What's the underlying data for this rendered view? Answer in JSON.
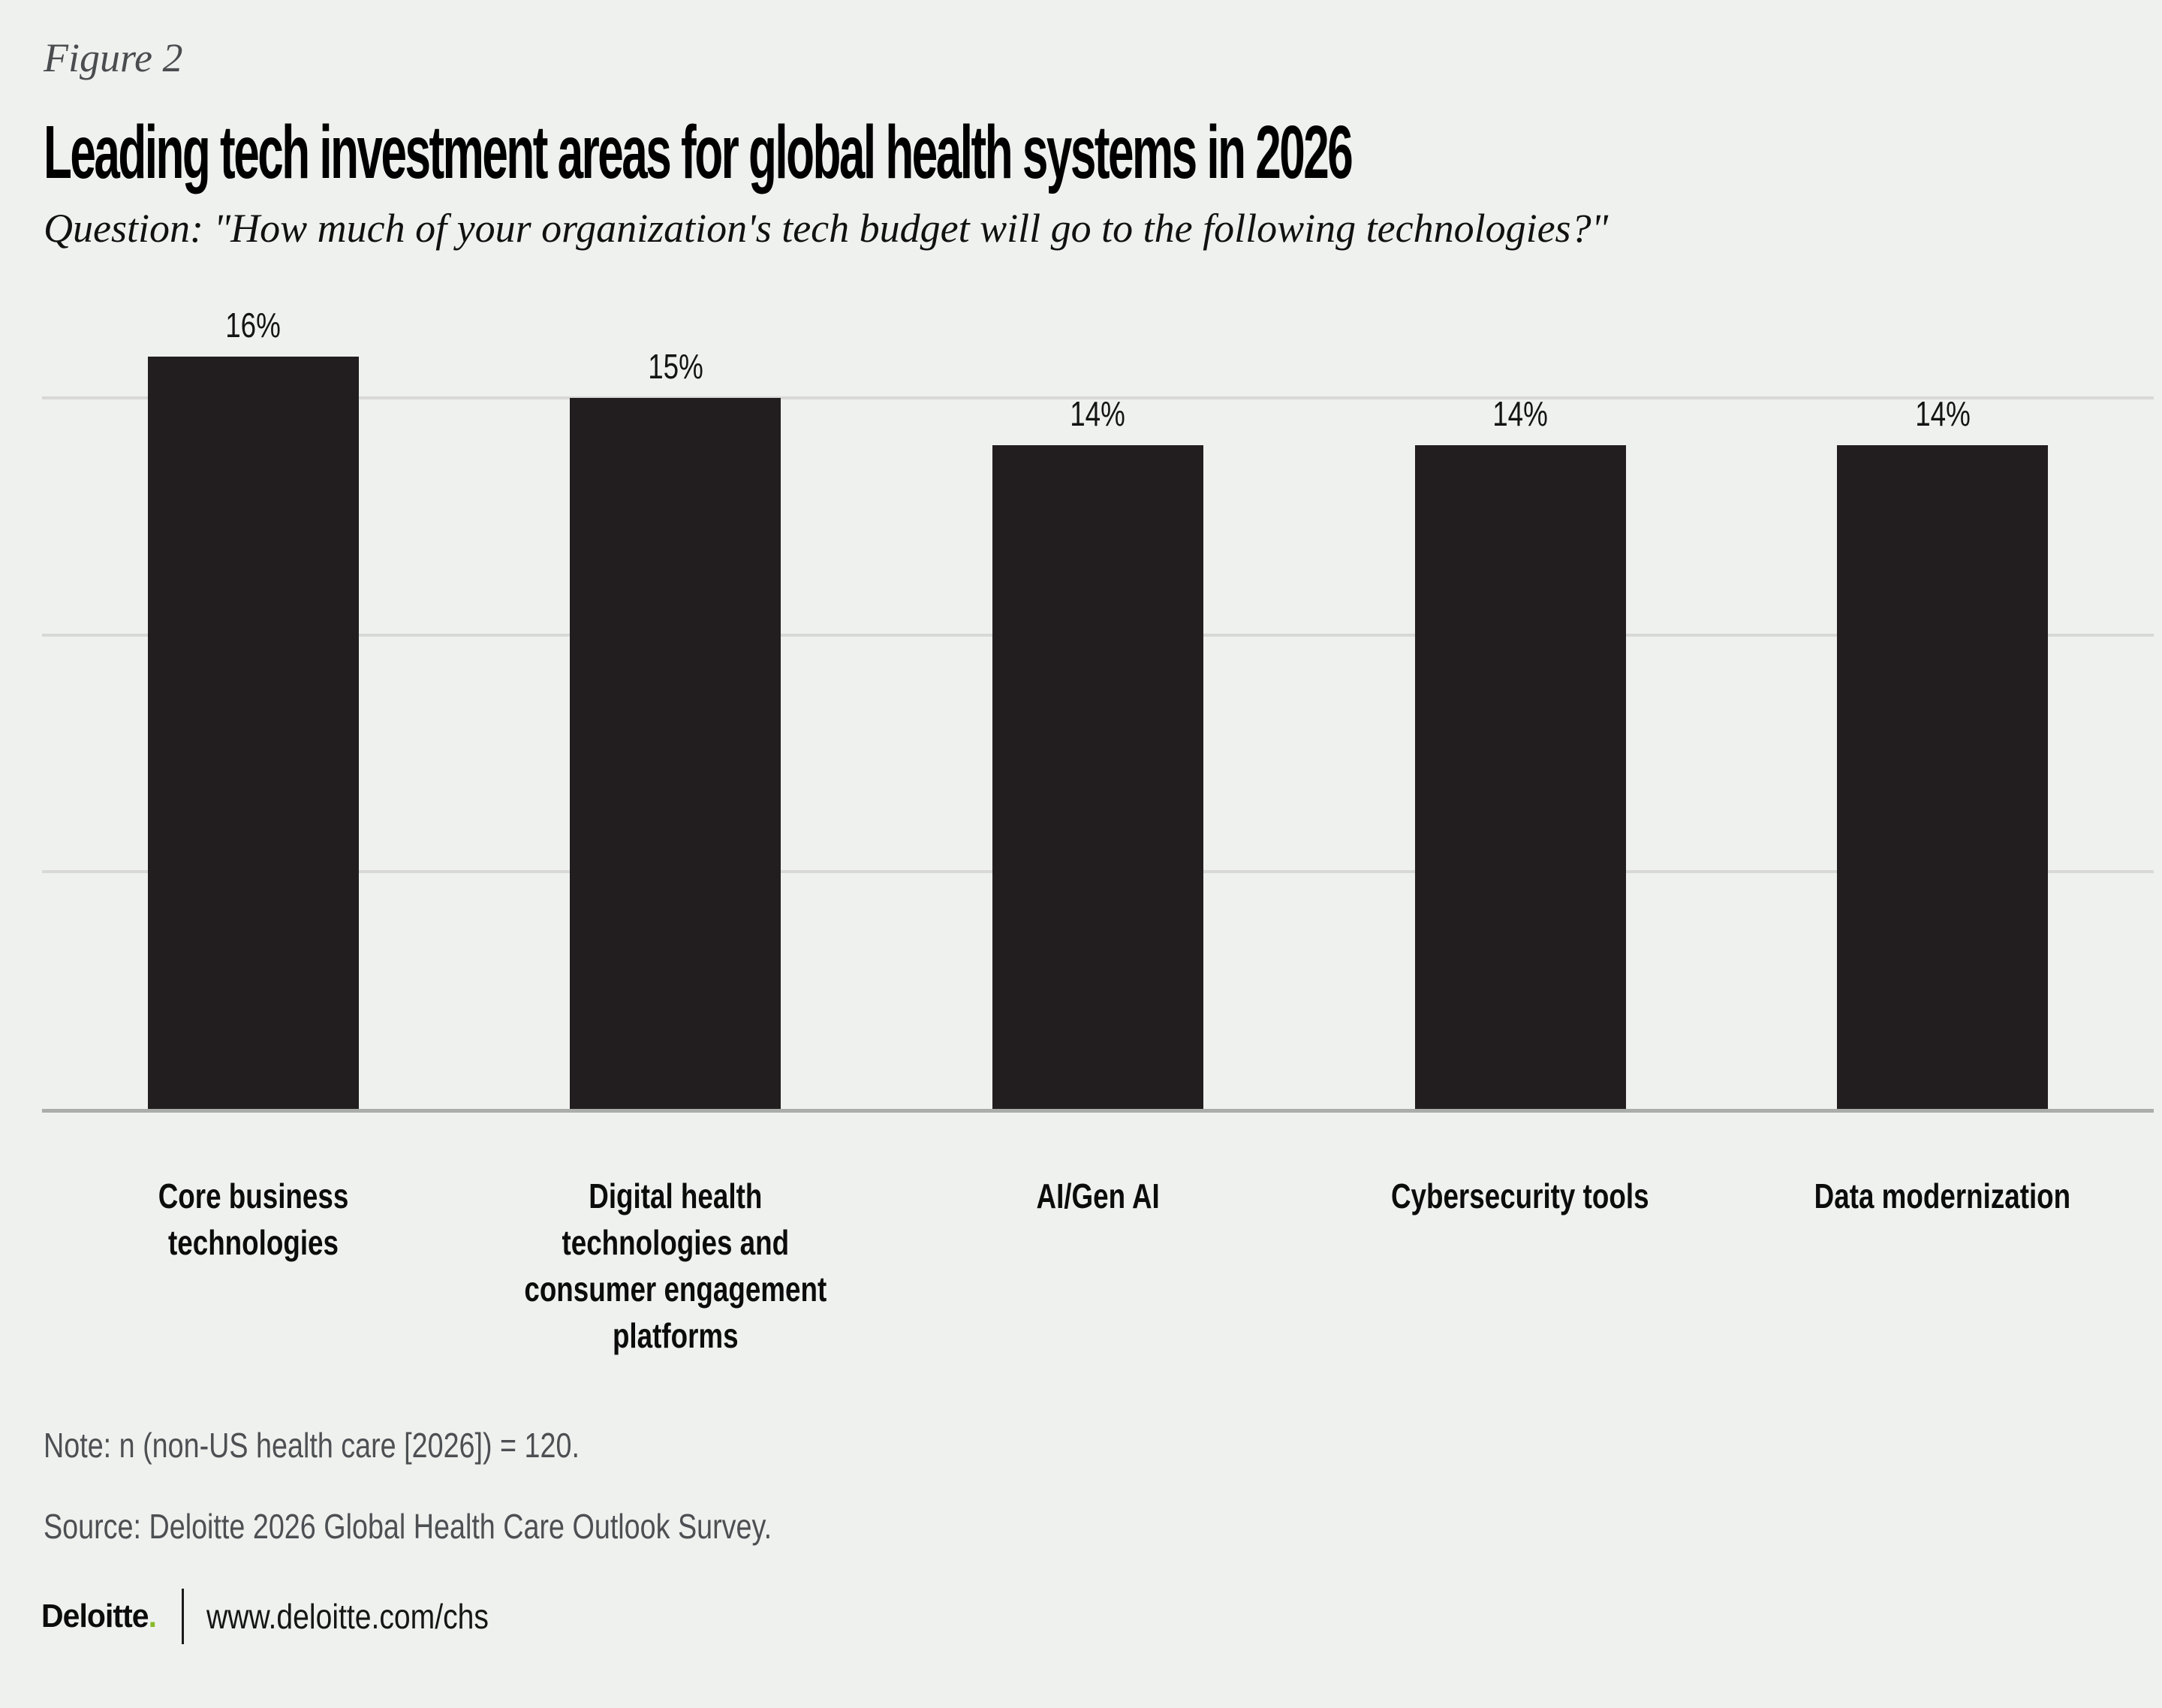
{
  "figure_label": "Figure 2",
  "title": "Leading tech investment areas for global health systems in 2026",
  "question": "Question: \"How much of your organization's tech budget will go to the following technologies?\"",
  "chart_data": {
    "type": "bar",
    "title": "Leading tech investment areas for global health systems in 2026",
    "categories": [
      "Core business technologies",
      "Digital health technologies and consumer engagement platforms",
      "AI/Gen AI",
      "Cybersecurity tools",
      "Data modernization"
    ],
    "category_lines": [
      [
        "Core business",
        "technologies"
      ],
      [
        "Digital health",
        "technologies and",
        "consumer engagement",
        "platforms"
      ],
      [
        "AI/Gen AI"
      ],
      [
        "Cybersecurity tools"
      ],
      [
        "Data modernization"
      ]
    ],
    "values": [
      16,
      15,
      14,
      14,
      14
    ],
    "value_labels": [
      "16%",
      "15%",
      "14%",
      "14%",
      "14%"
    ],
    "unit": "%",
    "xlabel": "",
    "ylabel": "",
    "ylim": [
      0,
      16
    ],
    "gridlines": [
      5,
      10,
      15
    ],
    "grid": "horizontal",
    "legend_position": "none",
    "bar_color": "#221e1f",
    "background_color": "#eff1ef"
  },
  "note": "Note: n (non-US health care [2026]) = 120.",
  "source": "Source: Deloitte 2026 Global Health Care Outlook Survey.",
  "footer": {
    "brand": "Deloitte",
    "brand_dot": ".",
    "url": "www.deloitte.com/chs",
    "brand_dot_color": "#86bc25"
  }
}
